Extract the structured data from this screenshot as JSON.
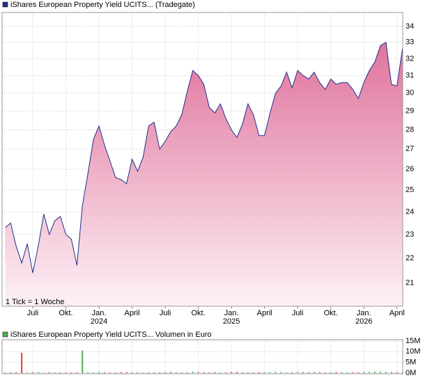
{
  "chart_data": [
    {
      "type": "area",
      "categories": [
        null,
        null,
        null,
        null,
        null,
        "Juli",
        null,
        null,
        null,
        null,
        null,
        "Okt.",
        null,
        null,
        null,
        null,
        null,
        "Jan.",
        null,
        null,
        null,
        null,
        null,
        "April",
        null,
        null,
        null,
        null,
        null,
        "Juli",
        null,
        null,
        null,
        null,
        null,
        "Okt.",
        null,
        null,
        null,
        null,
        null,
        "Jan.",
        null,
        null,
        null,
        null,
        null,
        "April",
        null,
        null,
        null,
        null,
        null,
        "Juli",
        null,
        null,
        null,
        null,
        null,
        "Okt.",
        null,
        null,
        null,
        null,
        null,
        "Jan.",
        null,
        null,
        null,
        null,
        null,
        "April",
        null
      ],
      "category_years": [
        null,
        null,
        null,
        null,
        null,
        null,
        null,
        null,
        null,
        null,
        null,
        null,
        null,
        null,
        null,
        null,
        null,
        "2024",
        null,
        null,
        null,
        null,
        null,
        null,
        null,
        null,
        null,
        null,
        null,
        null,
        null,
        null,
        null,
        null,
        null,
        null,
        null,
        null,
        null,
        null,
        null,
        "2025",
        null,
        null,
        null,
        null,
        null,
        null,
        null,
        null,
        null,
        null,
        null,
        null,
        null,
        null,
        null,
        null,
        null,
        null,
        null,
        null,
        null,
        null,
        null,
        "2026",
        null,
        null,
        null,
        null,
        null,
        null,
        null
      ],
      "series": [
        {
          "name": "iShares European Property Yield UCITS... (Tradegate)",
          "color": "#1f2f8f",
          "values": [
            23.3,
            23.5,
            22.5,
            21.8,
            22.6,
            21.4,
            22.5,
            23.9,
            23.0,
            23.6,
            23.8,
            23.0,
            22.8,
            21.7,
            24.3,
            25.8,
            27.5,
            28.2,
            27.2,
            26.4,
            25.6,
            25.5,
            25.3,
            26.5,
            25.9,
            26.6,
            28.2,
            28.4,
            27.0,
            27.4,
            27.9,
            28.2,
            28.8,
            30.1,
            31.3,
            31.0,
            30.5,
            29.2,
            28.9,
            29.4,
            28.6,
            28.0,
            27.6,
            28.3,
            29.4,
            28.8,
            27.7,
            27.7,
            28.9,
            30.0,
            30.4,
            31.2,
            30.3,
            31.3,
            31.0,
            30.8,
            31.2,
            30.6,
            30.2,
            30.8,
            30.5,
            30.6,
            30.6,
            30.2,
            29.7,
            30.6,
            31.3,
            31.8,
            32.8,
            33.0,
            30.5,
            30.4,
            32.6
          ]
        }
      ],
      "fill_top": "#e0739c",
      "fill_bottom": "#fdf1f6",
      "log_scale": true,
      "grid": true,
      "ylim": [
        20.1,
        34.9
      ],
      "yticks": [
        21,
        22,
        23,
        24,
        25,
        26,
        27,
        28,
        29,
        30,
        31,
        32,
        33,
        34
      ],
      "annotation": "1 Tick = 1 Woche"
    },
    {
      "type": "bar",
      "series": [
        {
          "name": "iShares European Property Yield UCITS... Volumen in Euro",
          "color": "#4caf50",
          "values": [
            300000,
            400000,
            350000,
            9500000,
            250000,
            300000,
            450000,
            200000,
            350000,
            300000,
            400000,
            250000,
            300000,
            350000,
            10500000,
            400000,
            300000,
            500000,
            350000,
            250000,
            300000,
            400000,
            450000,
            350000,
            300000,
            250000,
            400000,
            350000,
            300000,
            450000,
            500000,
            350000,
            300000,
            400000,
            600000,
            450000,
            350000,
            300000,
            400000,
            350000,
            300000,
            450000,
            500000,
            400000,
            350000,
            300000,
            400000,
            350000,
            450000,
            500000,
            400000,
            350000,
            300000,
            450000,
            400000,
            350000,
            500000,
            400000,
            300000,
            350000,
            450000,
            400000,
            350000,
            300000,
            400000,
            500000,
            450000,
            600000,
            550000,
            500000,
            450000,
            400000,
            350000
          ]
        }
      ],
      "up_color": "#4caf50",
      "down_color": "#e04040",
      "grid": true,
      "ylim": [
        0,
        15000000
      ],
      "yticks": [
        {
          "value": 0,
          "label": "0M"
        },
        {
          "value": 5000000,
          "label": "5M"
        },
        {
          "value": 10000000,
          "label": "10M"
        },
        {
          "value": 15000000,
          "label": "15M"
        }
      ]
    }
  ]
}
